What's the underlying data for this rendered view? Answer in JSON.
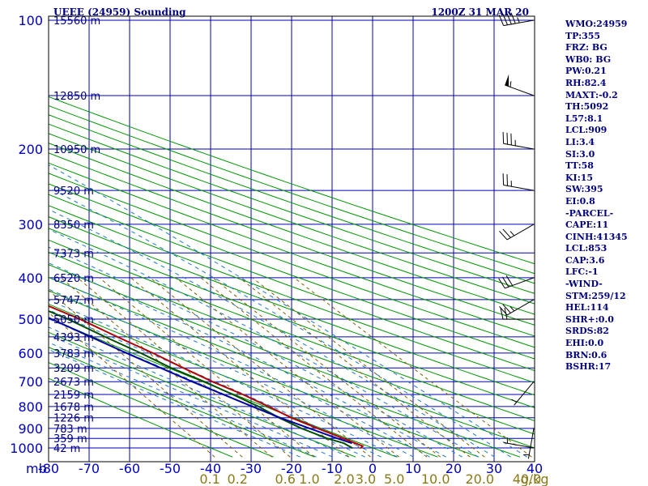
{
  "title": {
    "station": "UEEE (24959) Sounding",
    "time": "1200Z 31 MAR 20"
  },
  "indices": [
    "WMO:24959",
    "TP:355",
    "FRZ: BG",
    "WB0: BG",
    "PW:0.21",
    "RH:82.4",
    "MAXT:-0.2",
    "TH:5092",
    "L57:8.1",
    "LCL:909",
    "LI:3.4",
    "SI:3.0",
    "TT:58",
    "KI:15",
    "SW:395",
    "EI:0.8",
    "-PARCEL-",
    "CAPE:11",
    "CINH:41345",
    "LCL:853",
    "CAP:3.6",
    "LFC:-1",
    "-WIND-",
    "STM:259/12",
    "HEL:114",
    "SHR+:0.0",
    "SRDS:82",
    "EHI:0.0",
    "BRN:0.6",
    "BSHR:17"
  ],
  "colors": {
    "grid": "#0000b4",
    "dry_adiabat": "#009600",
    "moist_adiabat": "#1e78c8",
    "mixing_ratio": "#806000",
    "temperature": "#b40000",
    "dewpoint": "#005000",
    "parcel": "#0000a0",
    "wind_barb": "#000000"
  },
  "chart_data": {
    "type": "line",
    "kind": "skew-T log-P",
    "x_axis": {
      "unit_label": "mb",
      "ticks": [
        "-80",
        "-70",
        "-60",
        "-50",
        "-40",
        "-30",
        "-20",
        "-10",
        "0",
        "10",
        "20",
        "30",
        "40"
      ],
      "range": [
        -80,
        40
      ]
    },
    "y_axis": {
      "scale": "log",
      "ticks": [
        "100",
        "200",
        "300",
        "400",
        "500",
        "600",
        "700",
        "800",
        "900",
        "1000"
      ],
      "range": [
        1050,
        100
      ]
    },
    "mixing_ratio_labels": [
      "0.1",
      "0.2",
      "0.6",
      "1.0",
      "2.0",
      "3.0",
      "5.0",
      "10.0",
      "20.0",
      "40.0",
      "g/kg"
    ],
    "height_labels": [
      {
        "p": 100,
        "text": "15560 m"
      },
      {
        "p": 150,
        "text": "12850 m"
      },
      {
        "p": 200,
        "text": "10950 m"
      },
      {
        "p": 250,
        "text": "9520 m"
      },
      {
        "p": 300,
        "text": "8350 m"
      },
      {
        "p": 350,
        "text": "7373 m"
      },
      {
        "p": 400,
        "text": "6520 m"
      },
      {
        "p": 450,
        "text": "5747 m"
      },
      {
        "p": 500,
        "text": "5050 m"
      },
      {
        "p": 550,
        "text": "4393 m"
      },
      {
        "p": 600,
        "text": "3783 m"
      },
      {
        "p": 650,
        "text": "3209 m"
      },
      {
        "p": 700,
        "text": "2673 m"
      },
      {
        "p": 750,
        "text": "2159 m"
      },
      {
        "p": 800,
        "text": "1678 m"
      },
      {
        "p": 850,
        "text": "1226 m"
      },
      {
        "p": 900,
        "text": "783 m"
      },
      {
        "p": 950,
        "text": "359 m"
      },
      {
        "p": 1000,
        "text": "42 m"
      }
    ],
    "series": [
      {
        "name": "Temperature",
        "points": [
          [
            1001,
            -3
          ],
          [
            990,
            -2
          ],
          [
            950,
            -5
          ],
          [
            900,
            -9
          ],
          [
            850,
            -13
          ],
          [
            800,
            -16
          ],
          [
            750,
            -19.5
          ],
          [
            700,
            -24
          ],
          [
            650,
            -28
          ],
          [
            600,
            -32
          ],
          [
            550,
            -37
          ],
          [
            500,
            -42
          ],
          [
            450,
            -49
          ],
          [
            400,
            -54
          ],
          [
            380,
            -53
          ],
          [
            350,
            -57
          ],
          [
            300,
            -61
          ],
          [
            250,
            -62.5
          ],
          [
            200,
            -63
          ],
          [
            170,
            -61
          ],
          [
            160,
            -58
          ],
          [
            140,
            -55
          ],
          [
            130,
            -54
          ],
          [
            120,
            -50
          ],
          [
            100,
            -51
          ]
        ]
      },
      {
        "name": "Dewpoint",
        "points": [
          [
            1001,
            -5
          ],
          [
            975,
            -6
          ],
          [
            950,
            -9
          ],
          [
            900,
            -13
          ],
          [
            850,
            -16
          ],
          [
            800,
            -18.5
          ],
          [
            750,
            -22
          ],
          [
            700,
            -26
          ],
          [
            650,
            -31
          ],
          [
            600,
            -35
          ],
          [
            550,
            -40
          ],
          [
            500,
            -45
          ],
          [
            450,
            -52
          ],
          [
            400,
            -58
          ],
          [
            350,
            -63
          ],
          [
            300,
            -67
          ],
          [
            250,
            -72
          ],
          [
            200,
            -77
          ],
          [
            150,
            -81
          ],
          [
            140,
            -80
          ],
          [
            130,
            -84
          ],
          [
            100,
            -92
          ]
        ]
      },
      {
        "name": "Parcel",
        "points": [
          [
            975,
            -4
          ],
          [
            950,
            -6.5
          ],
          [
            900,
            -11
          ],
          [
            853,
            -15.5
          ],
          [
            800,
            -20
          ],
          [
            700,
            -29
          ],
          [
            600,
            -38.5
          ],
          [
            500,
            -49
          ],
          [
            400,
            -62
          ],
          [
            300,
            -79.6
          ]
        ]
      }
    ],
    "wind_barbs": [
      {
        "p": 100,
        "dir": 260,
        "spd": 45
      },
      {
        "p": 150,
        "dir": 290,
        "spd": 55
      },
      {
        "p": 200,
        "dir": 280,
        "spd": 35
      },
      {
        "p": 250,
        "dir": 280,
        "spd": 25
      },
      {
        "p": 300,
        "dir": 240,
        "spd": 25
      },
      {
        "p": 400,
        "dir": 250,
        "spd": 30
      },
      {
        "p": 450,
        "dir": 240,
        "spd": 25
      },
      {
        "p": 500,
        "dir": 270,
        "spd": 20
      },
      {
        "p": 700,
        "dir": 220,
        "spd": 5
      },
      {
        "p": 900,
        "dir": 190,
        "spd": 5
      },
      {
        "p": 1000,
        "dir": 280,
        "spd": 5
      }
    ]
  }
}
